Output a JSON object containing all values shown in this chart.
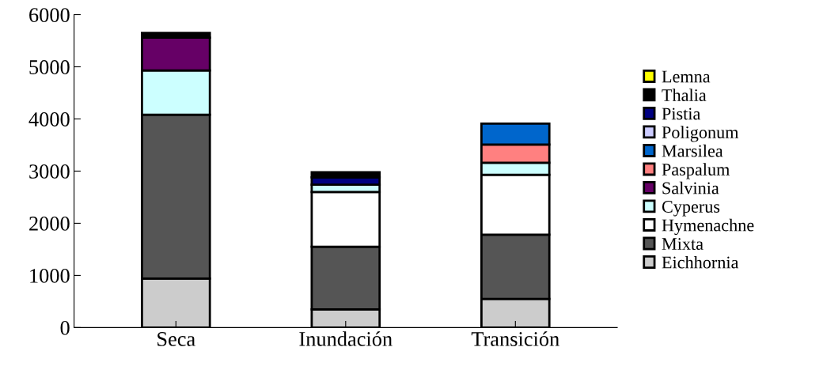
{
  "chart_data": {
    "type": "bar",
    "stacked": true,
    "categories": [
      "Seca",
      "Inundación",
      "Transición"
    ],
    "series": [
      {
        "name": "Eichhornia",
        "color": "#cccccc",
        "values": [
          940,
          350,
          550
        ]
      },
      {
        "name": "Mixta",
        "color": "#555555",
        "values": [
          3140,
          1200,
          1230
        ]
      },
      {
        "name": "Hymenachne",
        "color": "#ffffff",
        "values": [
          0,
          1050,
          1150
        ]
      },
      {
        "name": "Cyperus",
        "color": "#ccffff",
        "values": [
          850,
          140,
          230
        ]
      },
      {
        "name": "Salvinia",
        "color": "#660066",
        "values": [
          630,
          0,
          0
        ]
      },
      {
        "name": "Paspalum",
        "color": "#ff8080",
        "values": [
          0,
          0,
          350
        ]
      },
      {
        "name": "Marsilea",
        "color": "#0066cc",
        "values": [
          0,
          0,
          400
        ]
      },
      {
        "name": "Poligonum",
        "color": "#ccccff",
        "values": [
          0,
          0,
          0
        ]
      },
      {
        "name": "Pistia",
        "color": "#000080",
        "values": [
          0,
          140,
          0
        ]
      },
      {
        "name": "Thalia",
        "color": "#000000",
        "values": [
          90,
          100,
          0
        ]
      },
      {
        "name": "Lemna",
        "color": "#ffff00",
        "values": [
          0,
          0,
          0
        ]
      }
    ],
    "ylim": [
      0,
      6000
    ],
    "yticks": [
      0,
      1000,
      2000,
      3000,
      4000,
      5000,
      6000
    ],
    "grid": false,
    "legend": "right"
  }
}
